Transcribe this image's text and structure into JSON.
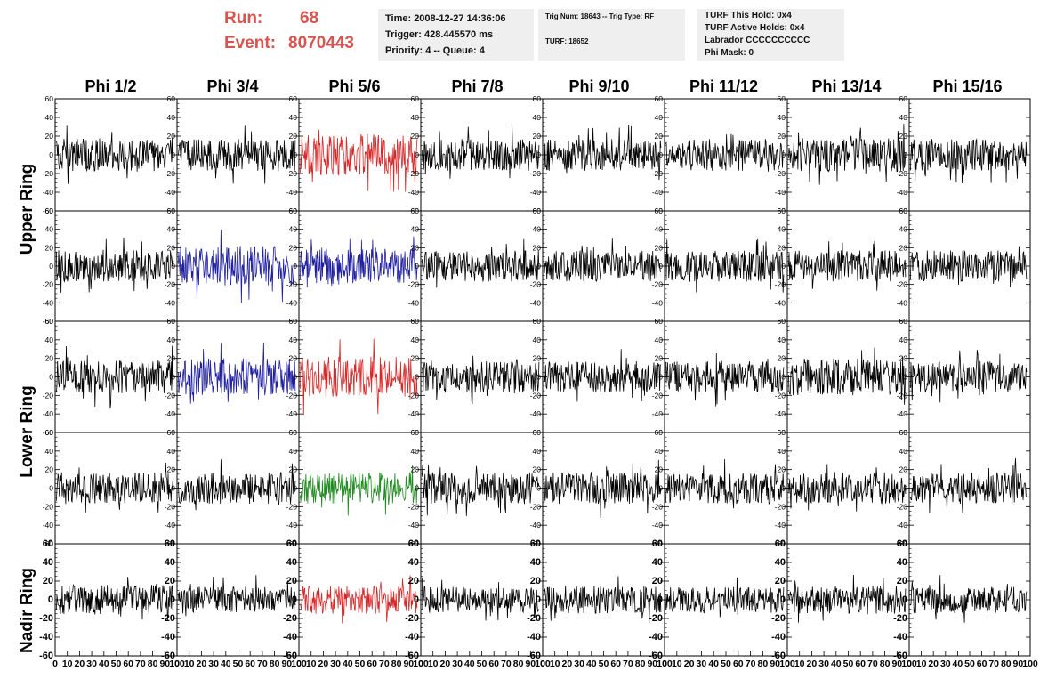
{
  "header": {
    "run_label": "Run:",
    "run_value": "68",
    "event_label": "Event:",
    "event_value": "8070443",
    "info_box_1": {
      "time": "Time: 2008-12-27 14:36:06",
      "trigger": "Trigger: 428.445570 ms",
      "priority": "Priority: 4 -- Queue: 4"
    },
    "info_box_2": {
      "trig": "Trig Num: 18643 -- Trig Type: RF",
      "turf": "TURF: 18652"
    },
    "info_box_3": {
      "this_hold": "TURF This Hold: 0x4",
      "active_holds": "TURF Active Holds: 0x4",
      "labrador": "Labrador CCCCCCCCCC",
      "phi_mask": "Phi Mask: 0"
    }
  },
  "columns": [
    "Phi 1/2",
    "Phi 3/4",
    "Phi 5/6",
    "Phi 7/8",
    "Phi 9/10",
    "Phi 11/12",
    "Phi 13/14",
    "Phi 15/16"
  ],
  "rings": [
    "Upper Ring",
    "Lower Ring",
    "Nadir Ring"
  ],
  "colors": {
    "default_trace": "#000000",
    "red_trace": "#d62728",
    "blue_trace": "#1f1fa0",
    "green_trace": "#1f8a1f",
    "header_text": "#d9534f",
    "info_box_bg": "#efefef"
  },
  "chart_data": {
    "type": "line",
    "description_rows": 5,
    "xlim": [
      0,
      100
    ],
    "ylim": [
      -60,
      60
    ],
    "x_ticks": [
      0,
      10,
      20,
      30,
      40,
      50,
      60,
      70,
      80,
      90,
      100
    ],
    "x_tick_labels": [
      "0",
      "10",
      "20",
      "30",
      "40",
      "50",
      "60",
      "70",
      "80",
      "90",
      "100"
    ],
    "y_ticks": [
      -60,
      -40,
      -20,
      0,
      20,
      40,
      60
    ],
    "y_tick_labels": [
      "-60",
      "-40",
      "-20",
      "0",
      "20",
      "40",
      "60"
    ],
    "trace_amplitude": [
      [
        18,
        17,
        22,
        17,
        17,
        17,
        18,
        17
      ],
      [
        17,
        22,
        20,
        17,
        17,
        17,
        17,
        17
      ],
      [
        18,
        20,
        22,
        17,
        17,
        17,
        20,
        17
      ],
      [
        17,
        17,
        17,
        17,
        17,
        17,
        17,
        17
      ],
      [
        16,
        14,
        15,
        14,
        15,
        14,
        15,
        14
      ]
    ],
    "trace_color_keys": [
      [
        "default_trace",
        "default_trace",
        "red_trace",
        "default_trace",
        "default_trace",
        "default_trace",
        "default_trace",
        "default_trace"
      ],
      [
        "default_trace",
        "blue_trace",
        "blue_trace",
        "default_trace",
        "default_trace",
        "default_trace",
        "default_trace",
        "default_trace"
      ],
      [
        "default_trace",
        "blue_trace",
        "red_trace",
        "default_trace",
        "default_trace",
        "default_trace",
        "default_trace",
        "default_trace"
      ],
      [
        "default_trace",
        "default_trace",
        "green_trace",
        "default_trace",
        "default_trace",
        "default_trace",
        "default_trace",
        "default_trace"
      ],
      [
        "default_trace",
        "default_trace",
        "red_trace",
        "default_trace",
        "default_trace",
        "default_trace",
        "default_trace",
        "default_trace"
      ]
    ]
  }
}
